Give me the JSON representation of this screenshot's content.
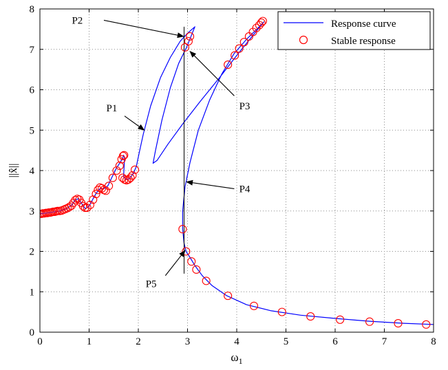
{
  "chart_data": {
    "type": "line",
    "title": "",
    "xlabel": "ω",
    "xlabel_sub": "1",
    "ylabel": "||x̂||",
    "xlim": [
      0,
      8
    ],
    "ylim": [
      0,
      8
    ],
    "xticks": [
      "0",
      "1",
      "2",
      "3",
      "4",
      "5",
      "6",
      "7",
      "8"
    ],
    "yticks": [
      "0",
      "1",
      "2",
      "3",
      "4",
      "5",
      "6",
      "7",
      "8"
    ],
    "grid": true,
    "legend_position": "top-right",
    "series": [
      {
        "name": "Response curve",
        "style": "line",
        "color": "#0000ff",
        "points": [
          [
            0.0,
            2.93
          ],
          [
            0.2,
            2.96
          ],
          [
            0.4,
            3.0
          ],
          [
            0.55,
            3.06
          ],
          [
            0.65,
            3.15
          ],
          [
            0.72,
            3.28
          ],
          [
            0.78,
            3.3
          ],
          [
            0.85,
            3.18
          ],
          [
            0.92,
            3.06
          ],
          [
            1.0,
            3.12
          ],
          [
            1.08,
            3.3
          ],
          [
            1.15,
            3.45
          ],
          [
            1.22,
            3.55
          ],
          [
            1.3,
            3.55
          ],
          [
            1.38,
            3.62
          ],
          [
            1.45,
            3.8
          ],
          [
            1.55,
            4.05
          ],
          [
            1.63,
            4.2
          ],
          [
            1.68,
            4.3
          ],
          [
            1.7,
            4.38
          ],
          [
            1.72,
            4.32
          ],
          [
            1.7,
            3.85
          ],
          [
            1.75,
            3.78
          ],
          [
            1.82,
            3.8
          ],
          [
            1.9,
            3.93
          ],
          [
            1.96,
            4.1
          ],
          [
            2.02,
            4.45
          ],
          [
            2.1,
            4.9
          ],
          [
            2.25,
            5.6
          ],
          [
            2.45,
            6.3
          ],
          [
            2.65,
            6.8
          ],
          [
            2.85,
            7.2
          ],
          [
            3.0,
            7.4
          ],
          [
            3.15,
            7.56
          ],
          [
            3.08,
            7.35
          ],
          [
            2.98,
            7.05
          ],
          [
            2.82,
            6.65
          ],
          [
            2.65,
            6.05
          ],
          [
            2.48,
            5.25
          ],
          [
            2.35,
            4.5
          ],
          [
            2.3,
            4.18
          ],
          [
            2.38,
            4.25
          ],
          [
            2.6,
            4.65
          ],
          [
            2.9,
            5.15
          ],
          [
            3.25,
            5.7
          ],
          [
            3.65,
            6.3
          ],
          [
            4.0,
            6.85
          ],
          [
            4.3,
            7.3
          ],
          [
            4.5,
            7.6
          ],
          [
            4.55,
            7.68
          ],
          [
            4.45,
            7.55
          ],
          [
            4.2,
            7.25
          ],
          [
            3.95,
            6.9
          ],
          [
            3.7,
            6.4
          ],
          [
            3.45,
            5.75
          ],
          [
            3.22,
            5.0
          ],
          [
            3.05,
            4.2
          ],
          [
            2.95,
            3.6
          ],
          [
            2.9,
            3.0
          ],
          [
            2.9,
            2.55
          ],
          [
            2.93,
            2.2
          ],
          [
            2.97,
            2.0
          ],
          [
            3.05,
            1.85
          ],
          [
            3.15,
            1.65
          ],
          [
            3.3,
            1.4
          ],
          [
            3.5,
            1.15
          ],
          [
            3.8,
            0.9
          ],
          [
            4.2,
            0.68
          ],
          [
            4.7,
            0.53
          ],
          [
            5.3,
            0.42
          ],
          [
            6.0,
            0.34
          ],
          [
            6.7,
            0.27
          ],
          [
            7.4,
            0.22
          ],
          [
            8.0,
            0.19
          ]
        ]
      },
      {
        "name": "Stable response",
        "style": "markers",
        "color": "#ff0000",
        "points": [
          [
            0.0,
            2.93
          ],
          [
            0.03,
            2.93
          ],
          [
            0.06,
            2.94
          ],
          [
            0.09,
            2.94
          ],
          [
            0.12,
            2.95
          ],
          [
            0.15,
            2.95
          ],
          [
            0.18,
            2.96
          ],
          [
            0.21,
            2.96
          ],
          [
            0.24,
            2.97
          ],
          [
            0.27,
            2.98
          ],
          [
            0.3,
            2.98
          ],
          [
            0.33,
            2.99
          ],
          [
            0.36,
            3.0
          ],
          [
            0.4,
            3.0
          ],
          [
            0.44,
            3.01
          ],
          [
            0.48,
            3.03
          ],
          [
            0.52,
            3.05
          ],
          [
            0.56,
            3.07
          ],
          [
            0.6,
            3.1
          ],
          [
            0.64,
            3.13
          ],
          [
            0.68,
            3.2
          ],
          [
            0.72,
            3.27
          ],
          [
            0.76,
            3.3
          ],
          [
            0.8,
            3.28
          ],
          [
            0.84,
            3.2
          ],
          [
            0.88,
            3.12
          ],
          [
            0.92,
            3.08
          ],
          [
            0.96,
            3.08
          ],
          [
            1.02,
            3.15
          ],
          [
            1.08,
            3.28
          ],
          [
            1.14,
            3.42
          ],
          [
            1.18,
            3.52
          ],
          [
            1.22,
            3.58
          ],
          [
            1.26,
            3.56
          ],
          [
            1.3,
            3.52
          ],
          [
            1.34,
            3.5
          ],
          [
            1.4,
            3.62
          ],
          [
            1.48,
            3.82
          ],
          [
            1.56,
            4.0
          ],
          [
            1.62,
            4.12
          ],
          [
            1.66,
            4.28
          ],
          [
            1.69,
            4.36
          ],
          [
            1.71,
            4.38
          ],
          [
            1.68,
            3.82
          ],
          [
            1.72,
            3.78
          ],
          [
            1.76,
            3.76
          ],
          [
            1.8,
            3.78
          ],
          [
            1.84,
            3.82
          ],
          [
            1.88,
            3.88
          ],
          [
            1.93,
            4.02
          ],
          [
            2.95,
            7.05
          ],
          [
            3.02,
            7.2
          ],
          [
            3.05,
            7.32
          ],
          [
            3.82,
            6.62
          ],
          [
            3.96,
            6.85
          ],
          [
            4.05,
            7.02
          ],
          [
            4.15,
            7.18
          ],
          [
            4.25,
            7.32
          ],
          [
            4.33,
            7.43
          ],
          [
            4.4,
            7.53
          ],
          [
            4.46,
            7.6
          ],
          [
            4.5,
            7.66
          ],
          [
            4.53,
            7.7
          ],
          [
            2.9,
            2.55
          ],
          [
            2.97,
            2.0
          ],
          [
            3.08,
            1.75
          ],
          [
            3.18,
            1.55
          ],
          [
            3.38,
            1.27
          ],
          [
            3.82,
            0.9
          ],
          [
            4.35,
            0.65
          ],
          [
            4.92,
            0.5
          ],
          [
            5.5,
            0.39
          ],
          [
            6.1,
            0.31
          ],
          [
            6.7,
            0.26
          ],
          [
            7.28,
            0.22
          ],
          [
            7.85,
            0.19
          ]
        ]
      }
    ],
    "vertical_line": {
      "x": 2.93,
      "y_from": 1.45,
      "y_to": 7.56
    },
    "annotations": [
      {
        "label": "P1",
        "tip": [
          2.12,
          5.0
        ],
        "text_at": [
          1.35,
          5.55
        ],
        "tail": [
          1.72,
          5.35
        ]
      },
      {
        "label": "P2",
        "tip": [
          2.92,
          7.32
        ],
        "text_at": [
          0.65,
          7.72
        ],
        "tail": [
          1.3,
          7.72
        ]
      },
      {
        "label": "P3",
        "tip": [
          3.05,
          6.95
        ],
        "text_at": [
          4.05,
          5.6
        ],
        "tail": [
          3.95,
          5.85
        ]
      },
      {
        "label": "P4",
        "tip": [
          2.98,
          3.72
        ],
        "text_at": [
          4.05,
          3.55
        ],
        "tail": [
          3.95,
          3.55
        ]
      },
      {
        "label": "P5",
        "tip": [
          2.95,
          2.02
        ],
        "text_at": [
          2.15,
          1.2
        ],
        "tail": [
          2.55,
          1.4
        ]
      }
    ]
  }
}
